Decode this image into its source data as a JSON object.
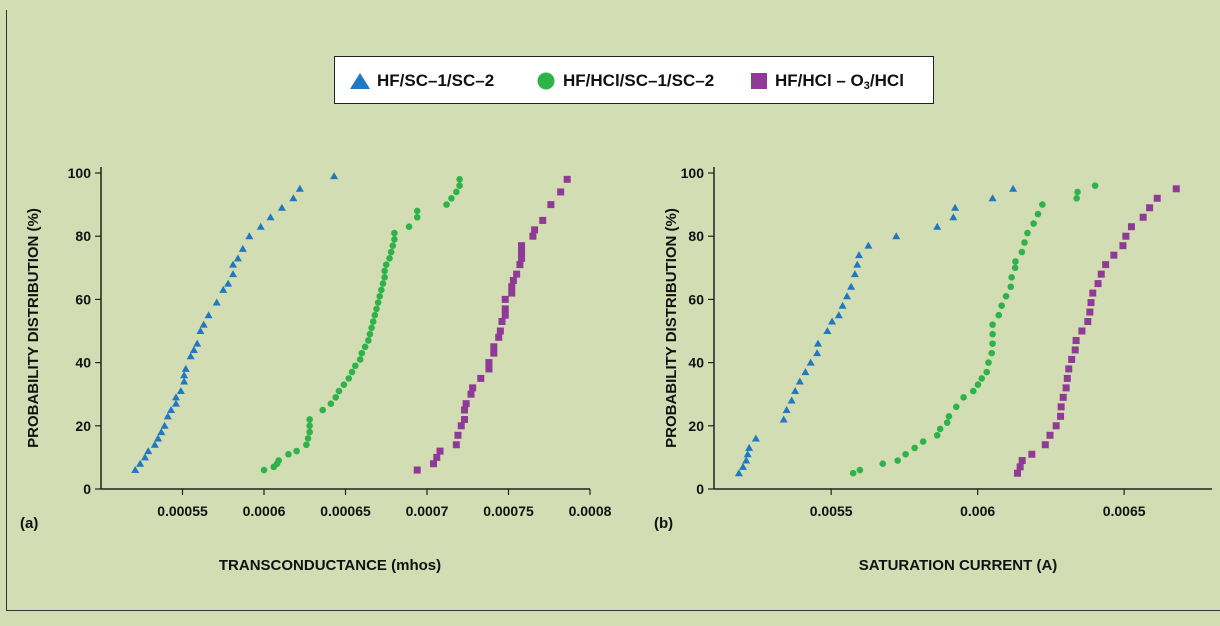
{
  "legend": {
    "series_a": "HF/SC–1/SC–2",
    "series_b": "HF/HCl/SC–1/SC–2",
    "series_c_prefix": "HF/HCl – O",
    "series_c_sub": "3",
    "series_c_suffix": "/HCl"
  },
  "colors": {
    "background": "#d3ddb3",
    "triangle": "#1f78c1",
    "circle": "#2db34a",
    "square": "#8e3a96"
  },
  "chart_data": [
    {
      "type": "scatter",
      "panel_label": "(a)",
      "xlabel": "TRANSCONDUCTANCE (mhos)",
      "ylabel": "PROBABILITY DISTRIBUTION (%)",
      "xlim": [
        0.0005,
        0.0008
      ],
      "ylim": [
        0,
        100
      ],
      "x_ticks": [
        "0.00055",
        "0.0006",
        "0.00065",
        "0.0007",
        "0.00075",
        "0.0008"
      ],
      "x_tick_values": [
        0.00055,
        0.0006,
        0.00065,
        0.0007,
        0.00075,
        0.0008
      ],
      "y_ticks": [
        "0",
        "20",
        "40",
        "60",
        "80",
        "100"
      ],
      "y_tick_values": [
        0,
        20,
        40,
        60,
        80,
        100
      ],
      "series": [
        {
          "marker": "triangle",
          "x": [
            0.000521,
            0.000524,
            0.000527,
            0.000529,
            0.000533,
            0.000535,
            0.000537,
            0.000539,
            0.000541,
            0.000543,
            0.000546,
            0.000546,
            0.000549,
            0.000551,
            0.000551,
            0.000552,
            0.000555,
            0.000557,
            0.000559,
            0.000561,
            0.000563,
            0.000566,
            0.000571,
            0.000575,
            0.000578,
            0.000581,
            0.000581,
            0.000584,
            0.000587,
            0.000591,
            0.000598,
            0.000604,
            0.000611,
            0.000618,
            0.000622,
            0.000643
          ],
          "y": [
            6,
            8,
            10,
            12,
            14,
            16,
            18,
            20,
            23,
            25,
            27,
            29,
            31,
            34,
            36,
            38,
            42,
            44,
            46,
            50,
            52,
            55,
            59,
            63,
            65,
            68,
            71,
            73,
            76,
            80,
            83,
            86,
            89,
            92,
            95,
            99
          ]
        },
        {
          "marker": "circle",
          "x": [
            0.0006,
            0.000606,
            0.000608,
            0.000609,
            0.000615,
            0.00062,
            0.000626,
            0.000627,
            0.000628,
            0.000628,
            0.000628,
            0.000636,
            0.000641,
            0.000644,
            0.000646,
            0.000649,
            0.000652,
            0.000654,
            0.000656,
            0.000659,
            0.00066,
            0.000662,
            0.000664,
            0.000665,
            0.000666,
            0.000667,
            0.000668,
            0.000669,
            0.00067,
            0.000671,
            0.000672,
            0.000673,
            0.000674,
            0.000674,
            0.000675,
            0.000677,
            0.000678,
            0.000679,
            0.00068,
            0.00068,
            0.000689,
            0.000694,
            0.000694,
            0.000712,
            0.000715,
            0.000718,
            0.00072,
            0.00072
          ],
          "y": [
            6,
            7,
            8,
            9,
            11,
            12,
            14,
            16,
            18,
            20,
            22,
            25,
            27,
            29,
            31,
            33,
            35,
            37,
            39,
            41,
            43,
            45,
            47,
            49,
            51,
            53,
            55,
            57,
            59,
            61,
            63,
            65,
            67,
            69,
            71,
            73,
            75,
            77,
            79,
            81,
            83,
            86,
            88,
            90,
            92,
            94,
            96,
            98
          ]
        },
        {
          "marker": "square",
          "x": [
            0.000694,
            0.000704,
            0.000706,
            0.000708,
            0.000718,
            0.000719,
            0.000721,
            0.000723,
            0.000723,
            0.000724,
            0.000727,
            0.000728,
            0.000733,
            0.000738,
            0.000738,
            0.000741,
            0.000741,
            0.000744,
            0.000745,
            0.000746,
            0.000748,
            0.000748,
            0.000748,
            0.000752,
            0.000752,
            0.000753,
            0.000755,
            0.000757,
            0.000758,
            0.000758,
            0.000758,
            0.000765,
            0.000766,
            0.000771,
            0.000776,
            0.000782,
            0.000786
          ],
          "y": [
            6,
            8,
            10,
            12,
            14,
            17,
            20,
            22,
            25,
            27,
            30,
            32,
            35,
            38,
            40,
            43,
            45,
            48,
            50,
            53,
            55,
            57,
            60,
            62,
            64,
            66,
            68,
            71,
            73,
            75,
            77,
            80,
            82,
            85,
            90,
            94,
            98
          ]
        }
      ]
    },
    {
      "type": "scatter",
      "panel_label": "(b)",
      "xlabel": "SATURATION CURRENT (A)",
      "ylabel": "PROBABILITY DISTRIBUTION (%)",
      "xlim": [
        0.0051,
        0.0068
      ],
      "ylim": [
        0,
        100
      ],
      "x_ticks": [
        "0.0055",
        "0.006",
        "0.0065"
      ],
      "x_tick_values": [
        0.0055,
        0.006,
        0.0065
      ],
      "y_ticks": [
        "0",
        "20",
        "40",
        "60",
        "80",
        "100"
      ],
      "y_tick_values": [
        0,
        20,
        40,
        60,
        80,
        100
      ],
      "series": [
        {
          "marker": "triangle",
          "x": [
            0.005185,
            0.005199,
            0.00521,
            0.005215,
            0.00522,
            0.005243,
            0.005338,
            0.005348,
            0.005365,
            0.005377,
            0.005393,
            0.005412,
            0.00543,
            0.005452,
            0.005455,
            0.005487,
            0.005503,
            0.005526,
            0.005539,
            0.005554,
            0.005568,
            0.005581,
            0.005589,
            0.005595,
            0.005627,
            0.005722,
            0.005862,
            0.005917,
            0.005923,
            0.006051,
            0.006121
          ],
          "y": [
            5,
            7,
            9,
            11,
            13,
            16,
            22,
            25,
            28,
            31,
            34,
            37,
            40,
            43,
            46,
            50,
            53,
            55,
            58,
            61,
            64,
            68,
            71,
            74,
            77,
            80,
            83,
            86,
            89,
            92,
            95
          ]
        },
        {
          "marker": "circle",
          "x": [
            0.005575,
            0.005598,
            0.005676,
            0.005727,
            0.005754,
            0.005785,
            0.005814,
            0.005862,
            0.005872,
            0.005896,
            0.005902,
            0.005927,
            0.005952,
            0.005985,
            0.006001,
            0.006014,
            0.006031,
            0.006037,
            0.006048,
            0.006051,
            0.006051,
            0.006051,
            0.006072,
            0.006082,
            0.006097,
            0.006113,
            0.006116,
            0.006128,
            0.006129,
            0.006151,
            0.00616,
            0.00617,
            0.006191,
            0.006206,
            0.006221,
            0.006338,
            0.006341,
            0.006401
          ],
          "y": [
            5,
            6,
            8,
            9,
            11,
            13,
            15,
            17,
            19,
            21,
            23,
            26,
            29,
            31,
            33,
            35,
            37,
            40,
            43,
            46,
            49,
            52,
            55,
            58,
            61,
            64,
            67,
            70,
            72,
            75,
            78,
            81,
            84,
            87,
            90,
            92,
            94,
            96
          ]
        },
        {
          "marker": "square",
          "x": [
            0.006136,
            0.006145,
            0.006152,
            0.006185,
            0.006231,
            0.006247,
            0.006268,
            0.006283,
            0.006285,
            0.006292,
            0.006302,
            0.006306,
            0.006311,
            0.006321,
            0.006333,
            0.006336,
            0.006356,
            0.006376,
            0.006383,
            0.006387,
            0.006393,
            0.006411,
            0.006422,
            0.006437,
            0.006465,
            0.006496,
            0.006506,
            0.006525,
            0.006565,
            0.006587,
            0.006613,
            0.006678
          ],
          "y": [
            5,
            7,
            9,
            11,
            14,
            17,
            20,
            23,
            26,
            29,
            32,
            35,
            38,
            41,
            44,
            47,
            50,
            53,
            56,
            59,
            62,
            65,
            68,
            71,
            74,
            77,
            80,
            83,
            86,
            89,
            92,
            95
          ]
        }
      ]
    }
  ]
}
